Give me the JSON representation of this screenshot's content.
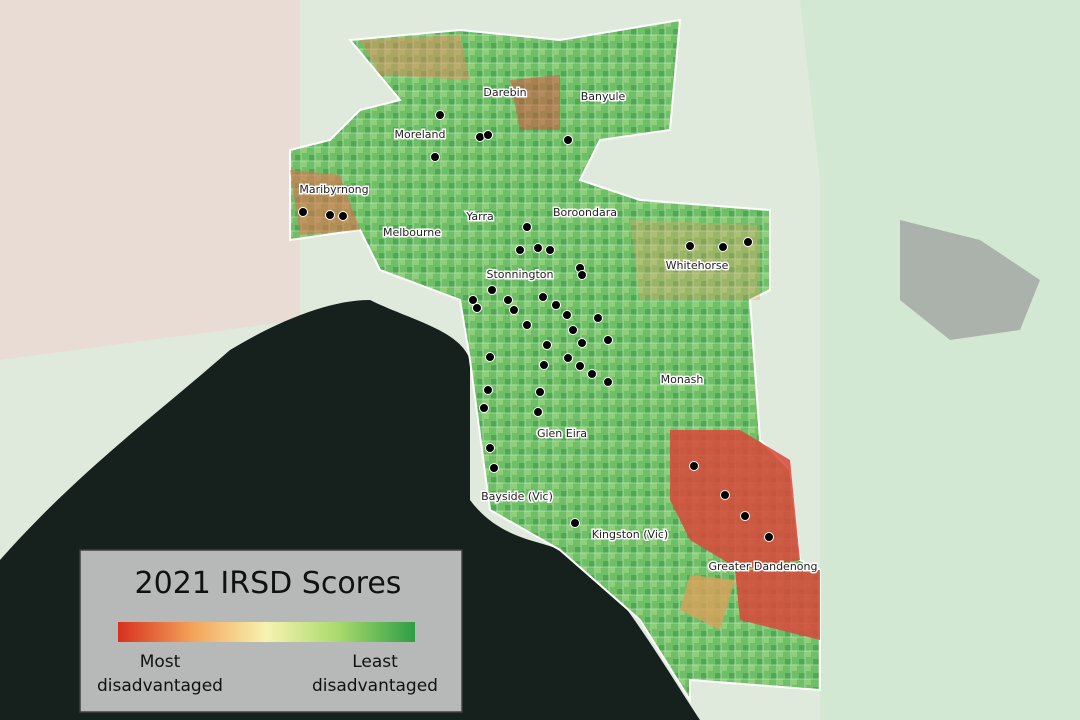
{
  "legend": {
    "title": "2021 IRSD Scores",
    "low_label": "Most disadvantaged",
    "high_label": "Least disadvantaged"
  },
  "regions": [
    {
      "label": "Darebin"
    },
    {
      "label": "Banyule"
    },
    {
      "label": "Moreland"
    },
    {
      "label": "Maribyrnong"
    },
    {
      "label": "Yarra"
    },
    {
      "label": "Boroondara"
    },
    {
      "label": "Melbourne"
    },
    {
      "label": "Stonnington"
    },
    {
      "label": "Whitehorse"
    },
    {
      "label": "Monash"
    },
    {
      "label": "Glen Eira"
    },
    {
      "label": "Bayside (Vic)"
    },
    {
      "label": "Kingston (Vic)"
    },
    {
      "label": "Greater Dandenong"
    }
  ]
}
